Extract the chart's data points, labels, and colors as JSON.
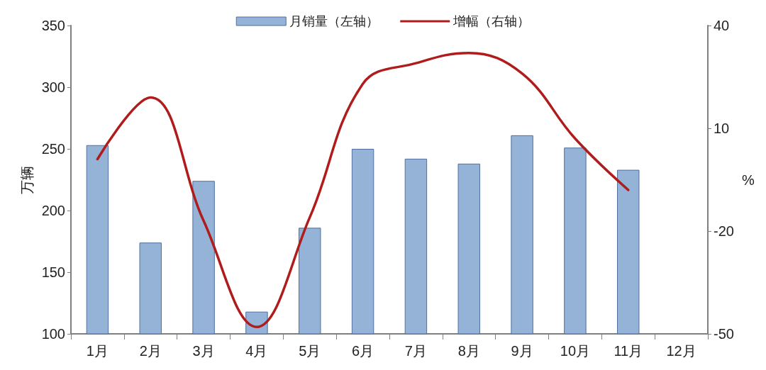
{
  "chart_data": {
    "type": "bar",
    "categories": [
      "1月",
      "2月",
      "3月",
      "4月",
      "5月",
      "6月",
      "7月",
      "8月",
      "9月",
      "10月",
      "11月",
      "12月"
    ],
    "series": [
      {
        "name": "月销量（左轴）",
        "color": "#95b3d7",
        "values": [
          253,
          174,
          224,
          118,
          186,
          250,
          242,
          238,
          261,
          251,
          233,
          null
        ]
      },
      {
        "name": "增幅（右轴）",
        "type": "line",
        "axis": "y2",
        "color": "#b01c1c",
        "values": [
          1,
          19,
          -17,
          -48,
          -16,
          23,
          29,
          32,
          26,
          7,
          -8,
          null
        ]
      }
    ],
    "ylabel": "万辆",
    "y2label": "%",
    "ylim": [
      100,
      350
    ],
    "yticks": [
      100,
      150,
      200,
      250,
      300,
      350
    ],
    "y2lim": [
      -50,
      40
    ],
    "y2ticks": [
      -50,
      -20,
      10,
      40
    ],
    "legend": "top",
    "grid": false,
    "marker": "none"
  }
}
